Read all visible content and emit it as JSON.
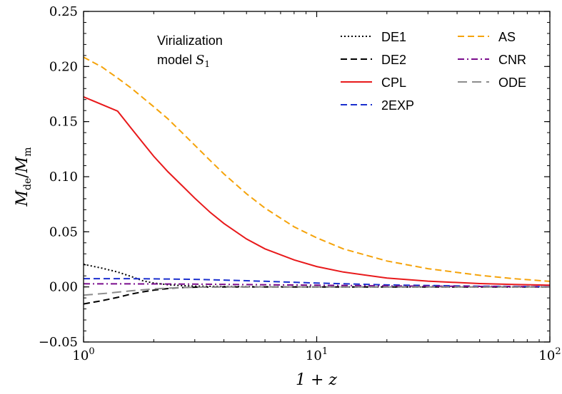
{
  "chart_data": {
    "type": "line",
    "xscale": "log",
    "xlim": [
      1,
      100
    ],
    "ylim": [
      -0.05,
      0.25
    ],
    "xlabel": "1 + z",
    "ylabel": "M_de / M_m",
    "ylabel_main": "M",
    "ylabel_num_sub": "de",
    "ylabel_den_sub": "m",
    "annotation": {
      "line1": "Virialization",
      "line2_prefix": "model ",
      "symbol": "S",
      "symbol_sub": "1"
    },
    "x_ticks": [
      {
        "value": 1,
        "base": "10",
        "exp": "0"
      },
      {
        "value": 10,
        "base": "10",
        "exp": "1"
      },
      {
        "value": 100,
        "base": "10",
        "exp": "2"
      }
    ],
    "y_ticks": [
      {
        "value": -0.05,
        "label": "−0.05"
      },
      {
        "value": 0.0,
        "label": "0.00"
      },
      {
        "value": 0.05,
        "label": "0.05"
      },
      {
        "value": 0.1,
        "label": "0.10"
      },
      {
        "value": 0.15,
        "label": "0.15"
      },
      {
        "value": 0.2,
        "label": "0.20"
      },
      {
        "value": 0.25,
        "label": "0.25"
      }
    ],
    "legend": {
      "placement": "top-right",
      "columns": 2
    },
    "series": [
      {
        "name": "DE1",
        "color": "#000000",
        "dash": "dotted",
        "x": [
          1,
          1.2,
          1.4,
          1.6,
          1.8,
          2.0,
          2.3,
          2.6,
          3,
          4,
          6,
          10,
          20,
          50,
          100
        ],
        "y": [
          0.0205,
          0.017,
          0.0135,
          0.0095,
          0.0055,
          0.0035,
          0.002,
          0.0012,
          0.0007,
          0.0003,
          0.0001,
          0.0,
          0.0,
          0.0,
          0.0
        ]
      },
      {
        "name": "DE2",
        "color": "#000000",
        "dash": "dashed",
        "x": [
          1,
          1.2,
          1.4,
          1.6,
          1.8,
          2.0,
          2.3,
          2.6,
          3,
          4,
          6,
          10,
          20,
          50,
          100
        ],
        "y": [
          -0.0155,
          -0.0125,
          -0.0095,
          -0.0065,
          -0.0045,
          -0.003,
          -0.0015,
          -0.0007,
          -0.0003,
          0.0,
          0.0,
          0.0,
          0.0,
          0.0,
          0.0
        ]
      },
      {
        "name": "CPL",
        "color": "#e8191b",
        "dash": "solid",
        "x": [
          1,
          1.4,
          1.6,
          1.8,
          2,
          2.3,
          2.6,
          3,
          3.5,
          4,
          5,
          6,
          8,
          10,
          13,
          20,
          30,
          50,
          70,
          100
        ],
        "y": [
          0.1725,
          0.1595,
          0.144,
          0.1305,
          0.1185,
          0.1045,
          0.0935,
          0.0805,
          0.0675,
          0.0575,
          0.0435,
          0.0345,
          0.0245,
          0.0185,
          0.0135,
          0.008,
          0.0052,
          0.003,
          0.0022,
          0.0015
        ]
      },
      {
        "name": "2EXP",
        "color": "#1a2fce",
        "dash": "dashed",
        "x": [
          1,
          1.5,
          2,
          3,
          4,
          6,
          10,
          20,
          50,
          100
        ],
        "y": [
          0.0075,
          0.0075,
          0.0073,
          0.0068,
          0.0062,
          0.0051,
          0.0035,
          0.0018,
          0.0006,
          0.0002
        ]
      },
      {
        "name": "AS",
        "color": "#f5a30a",
        "dash": "dashed",
        "x": [
          1,
          1.2,
          1.4,
          1.6,
          1.8,
          2,
          2.3,
          2.6,
          3,
          3.5,
          4,
          5,
          6,
          8,
          10,
          13,
          20,
          30,
          50,
          70,
          100
        ],
        "y": [
          0.2085,
          0.1995,
          0.1895,
          0.1805,
          0.1715,
          0.1635,
          0.1525,
          0.1415,
          0.1285,
          0.1145,
          0.1025,
          0.0845,
          0.0715,
          0.0545,
          0.0445,
          0.0345,
          0.0235,
          0.0165,
          0.0105,
          0.0075,
          0.005
        ]
      },
      {
        "name": "CNR",
        "color": "#7a0c8c",
        "dash": "dashdot",
        "x": [
          1,
          2,
          3,
          5,
          10,
          20,
          50,
          100
        ],
        "y": [
          0.0028,
          0.0027,
          0.0025,
          0.0021,
          0.0015,
          0.0009,
          0.0004,
          0.0002
        ]
      },
      {
        "name": "ODE",
        "color": "#8c8c8c",
        "dash": "longdash",
        "x": [
          1,
          1.3,
          1.6,
          2,
          2.5,
          3,
          4,
          6,
          10,
          20,
          50,
          100
        ],
        "y": [
          -0.0075,
          -0.0055,
          -0.0035,
          -0.0018,
          -0.0008,
          -0.0003,
          0.0,
          0.0,
          0.0,
          0.0,
          0.0,
          0.0
        ]
      }
    ]
  }
}
